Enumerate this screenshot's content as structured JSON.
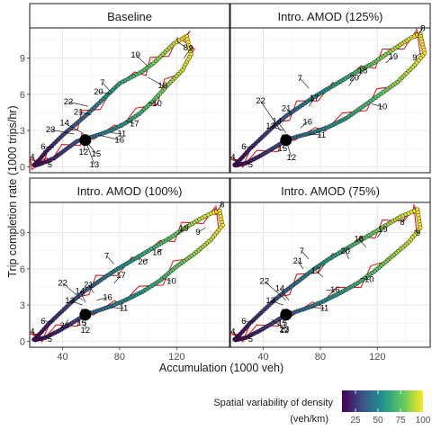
{
  "chart_data": {
    "type": "scatter",
    "layout": "faceted 2x2 small multiples with shared axes",
    "xlabel": "Accumulation (1000 veh)",
    "ylabel": "Trip completion rate (1000 trips/hr)",
    "xlim": [
      17,
      157
    ],
    "ylim": [
      -0.5,
      11.5
    ],
    "x_ticks": [
      40,
      80,
      120
    ],
    "y_ticks": [
      0,
      3,
      6,
      9
    ],
    "grid": true,
    "color_legend": {
      "title": "Spatial variability of density (veh/km)",
      "title_lines": [
        "Spatial variability of density",
        "(veh/km)"
      ],
      "placement": "bottom-right",
      "scale": "viridis",
      "range": [
        10,
        100
      ],
      "ticks": [
        25,
        50,
        75,
        100
      ],
      "colors": [
        "#440154",
        "#3b528b",
        "#21918c",
        "#5ec962",
        "#fde725"
      ]
    },
    "envelope_color": "#e41a1c",
    "panels": [
      {
        "title": "Baseline",
        "peak_hour": 8,
        "peak_point": [
          127,
          10.8
        ],
        "inner": [
          [
            20,
            0.15
          ],
          [
            24,
            0.6
          ],
          [
            28,
            1.2
          ],
          [
            34,
            1.9
          ],
          [
            40,
            2.6
          ],
          [
            48,
            3.4
          ],
          [
            56,
            4.2
          ],
          [
            64,
            5.1
          ],
          [
            72,
            6.0
          ],
          [
            80,
            6.9
          ],
          [
            88,
            7.4
          ],
          [
            96,
            7.9
          ],
          [
            104,
            8.6
          ],
          [
            112,
            9.5
          ],
          [
            118,
            10.2
          ],
          [
            124,
            10.6
          ],
          [
            127,
            10.8
          ]
        ],
        "outer": [
          [
            127,
            10.8
          ],
          [
            130,
            9.3
          ],
          [
            124,
            8.0
          ],
          [
            114,
            6.8
          ],
          [
            104,
            5.5
          ],
          [
            94,
            4.4
          ],
          [
            84,
            3.6
          ],
          [
            74,
            3.0
          ],
          [
            64,
            2.6
          ],
          [
            56,
            2.3
          ],
          [
            50,
            2.1
          ],
          [
            42,
            1.4
          ],
          [
            34,
            0.7
          ],
          [
            26,
            0.3
          ],
          [
            21,
            0.1
          ]
        ],
        "labels": [
          {
            "text": "4",
            "x": 22,
            "y": 0.3,
            "lx": -5,
            "ly": -4
          },
          {
            "text": "5",
            "x": 28,
            "y": 0.4,
            "lx": 5,
            "ly": 6
          },
          {
            "text": "6",
            "x": 34,
            "y": 1.6,
            "lx": -12,
            "ly": 2
          },
          {
            "text": "7",
            "x": 73,
            "y": 6.3,
            "lx": -8,
            "ly": -6
          },
          {
            "text": "8",
            "x": 120,
            "y": 10.4,
            "lx": 10,
            "ly": 10
          },
          {
            "text": "9",
            "x": 125,
            "y": 9.0,
            "lx": 8,
            "ly": -8
          },
          {
            "text": "10",
            "x": 100,
            "y": 5.3,
            "lx": 10,
            "ly": 4
          },
          {
            "text": "11",
            "x": 74,
            "y": 2.8,
            "lx": 12,
            "ly": 4
          },
          {
            "text": "12",
            "x": 56,
            "y": 2.2,
            "lx": -2,
            "ly": 16
          },
          {
            "text": "13",
            "x": 56,
            "y": 2.2,
            "lx": 10,
            "ly": 30
          },
          {
            "text": "14",
            "x": 54,
            "y": 2.8,
            "lx": -20,
            "ly": -8
          },
          {
            "text": "15",
            "x": 56,
            "y": 2.2,
            "lx": 12,
            "ly": 18
          },
          {
            "text": "16",
            "x": 66,
            "y": 2.6,
            "lx": 22,
            "ly": 8
          },
          {
            "text": "17",
            "x": 84,
            "y": 3.8,
            "lx": 10,
            "ly": 6
          },
          {
            "text": "18",
            "x": 100,
            "y": 7.4,
            "lx": 16,
            "ly": 12
          },
          {
            "text": "19",
            "x": 100,
            "y": 8.3,
            "lx": -14,
            "ly": -10
          },
          {
            "text": "20",
            "x": 74,
            "y": 6.0,
            "lx": -14,
            "ly": 0
          },
          {
            "text": "21",
            "x": 60,
            "y": 4.3,
            "lx": -14,
            "ly": 0
          },
          {
            "text": "22",
            "x": 58,
            "y": 5.0,
            "lx": -22,
            "ly": -2
          },
          {
            "text": "23",
            "x": 48,
            "y": 2.7,
            "lx": -26,
            "ly": -2
          }
        ]
      },
      {
        "title": "Intro. AMOD (125%)",
        "peak_hour": 8,
        "peak_point": [
          150,
          11.0
        ],
        "inner": [
          [
            20,
            0.15
          ],
          [
            24,
            0.6
          ],
          [
            30,
            1.4
          ],
          [
            38,
            2.3
          ],
          [
            46,
            3.2
          ],
          [
            56,
            4.2
          ],
          [
            66,
            5.0
          ],
          [
            76,
            5.8
          ],
          [
            86,
            6.5
          ],
          [
            96,
            7.2
          ],
          [
            106,
            7.9
          ],
          [
            116,
            8.5
          ],
          [
            126,
            9.3
          ],
          [
            136,
            10.1
          ],
          [
            144,
            10.7
          ],
          [
            150,
            11.0
          ]
        ],
        "outer": [
          [
            150,
            11.0
          ],
          [
            153,
            9.4
          ],
          [
            146,
            8.4
          ],
          [
            134,
            7.0
          ],
          [
            122,
            6.0
          ],
          [
            110,
            5.0
          ],
          [
            98,
            4.0
          ],
          [
            86,
            3.3
          ],
          [
            74,
            2.8
          ],
          [
            64,
            2.5
          ],
          [
            56,
            2.2
          ],
          [
            48,
            1.6
          ],
          [
            38,
            0.9
          ],
          [
            28,
            0.3
          ],
          [
            21,
            0.1
          ]
        ],
        "labels": [
          {
            "text": "4",
            "x": 22,
            "y": 0.3,
            "lx": -5,
            "ly": -4
          },
          {
            "text": "5",
            "x": 28,
            "y": 0.4,
            "lx": 5,
            "ly": 6
          },
          {
            "text": "6",
            "x": 34,
            "y": 1.6,
            "lx": -12,
            "ly": 2
          },
          {
            "text": "7",
            "x": 72,
            "y": 6.5,
            "lx": -10,
            "ly": -8
          },
          {
            "text": "8",
            "x": 148,
            "y": 10.8,
            "lx": 6,
            "ly": -6
          },
          {
            "text": "9",
            "x": 150,
            "y": 9.4,
            "lx": -6,
            "ly": 8
          },
          {
            "text": "10",
            "x": 116,
            "y": 5.2,
            "lx": 12,
            "ly": 6
          },
          {
            "text": "11",
            "x": 72,
            "y": 2.7,
            "lx": 14,
            "ly": 4
          },
          {
            "text": "12",
            "x": 56,
            "y": 2.2,
            "lx": 6,
            "ly": 22
          },
          {
            "text": "13",
            "x": 54,
            "y": 3.0,
            "lx": -14,
            "ly": -2
          },
          {
            "text": "14",
            "x": 56,
            "y": 2.8,
            "lx": -10,
            "ly": -10
          },
          {
            "text": "15",
            "x": 56,
            "y": 2.2,
            "lx": -4,
            "ly": 12
          },
          {
            "text": "16",
            "x": 66,
            "y": 3.2,
            "lx": 8,
            "ly": -4
          },
          {
            "text": "17",
            "x": 72,
            "y": 5.0,
            "lx": 6,
            "ly": -6
          },
          {
            "text": "18",
            "x": 106,
            "y": 7.3,
            "lx": 6,
            "ly": -6
          },
          {
            "text": "19",
            "x": 126,
            "y": 8.6,
            "lx": 8,
            "ly": -4
          },
          {
            "text": "20",
            "x": 100,
            "y": 6.7,
            "lx": 6,
            "ly": -6
          },
          {
            "text": "21",
            "x": 60,
            "y": 4.3,
            "lx": -6,
            "ly": -4
          },
          {
            "text": "22",
            "x": 52,
            "y": 3.0,
            "lx": -22,
            "ly": -30
          }
        ]
      },
      {
        "title": "Intro. AMOD (100%)",
        "peak_hour": 8,
        "peak_point": [
          150,
          10.8
        ],
        "inner": [
          [
            20,
            0.15
          ],
          [
            24,
            0.6
          ],
          [
            30,
            1.4
          ],
          [
            38,
            2.3
          ],
          [
            46,
            3.2
          ],
          [
            56,
            4.2
          ],
          [
            66,
            5.0
          ],
          [
            76,
            5.8
          ],
          [
            86,
            6.5
          ],
          [
            96,
            7.2
          ],
          [
            106,
            7.9
          ],
          [
            116,
            8.6
          ],
          [
            126,
            9.4
          ],
          [
            136,
            10.1
          ],
          [
            144,
            10.6
          ],
          [
            150,
            10.8
          ]
        ],
        "outer": [
          [
            150,
            10.8
          ],
          [
            152,
            9.6
          ],
          [
            144,
            8.4
          ],
          [
            132,
            7.2
          ],
          [
            120,
            6.2
          ],
          [
            108,
            5.0
          ],
          [
            96,
            4.1
          ],
          [
            84,
            3.4
          ],
          [
            74,
            2.9
          ],
          [
            64,
            2.5
          ],
          [
            56,
            2.2
          ],
          [
            48,
            1.6
          ],
          [
            38,
            0.9
          ],
          [
            28,
            0.3
          ],
          [
            21,
            0.1
          ]
        ],
        "labels": [
          {
            "text": "4",
            "x": 22,
            "y": 0.3,
            "lx": -5,
            "ly": -4
          },
          {
            "text": "5",
            "x": 28,
            "y": 0.4,
            "lx": 5,
            "ly": 6
          },
          {
            "text": "6",
            "x": 34,
            "y": 1.6,
            "lx": -12,
            "ly": 2
          },
          {
            "text": "7",
            "x": 76,
            "y": 6.4,
            "lx": -8,
            "ly": -6
          },
          {
            "text": "8",
            "x": 148,
            "y": 10.8,
            "lx": 6,
            "ly": -4
          },
          {
            "text": "9",
            "x": 140,
            "y": 9.4,
            "lx": -8,
            "ly": 8
          },
          {
            "text": "10",
            "x": 110,
            "y": 5.2,
            "lx": 10,
            "ly": 6
          },
          {
            "text": "11",
            "x": 74,
            "y": 2.8,
            "lx": 14,
            "ly": 4
          },
          {
            "text": "12",
            "x": 56,
            "y": 2.2,
            "lx": 0,
            "ly": 20
          },
          {
            "text": "13",
            "x": 54,
            "y": 3.0,
            "lx": -14,
            "ly": -2
          },
          {
            "text": "14",
            "x": 56,
            "y": 3.2,
            "lx": -6,
            "ly": -10
          },
          {
            "text": "15",
            "x": 56,
            "y": 2.2,
            "lx": -4,
            "ly": 12
          },
          {
            "text": "16",
            "x": 64,
            "y": 3.4,
            "lx": 12,
            "ly": 0
          },
          {
            "text": "17",
            "x": 76,
            "y": 4.8,
            "lx": 8,
            "ly": -6
          },
          {
            "text": "18",
            "x": 110,
            "y": 7.6,
            "lx": -6,
            "ly": 6
          },
          {
            "text": "19",
            "x": 120,
            "y": 8.8,
            "lx": 8,
            "ly": -4
          },
          {
            "text": "20",
            "x": 100,
            "y": 6.8,
            "lx": -6,
            "ly": 6
          },
          {
            "text": "21",
            "x": 62,
            "y": 4.0,
            "lx": -6,
            "ly": -6
          },
          {
            "text": "22",
            "x": 54,
            "y": 3.4,
            "lx": -22,
            "ly": -16
          },
          {
            "text": "23",
            "x": 44,
            "y": 1.8,
            "lx": -4,
            "ly": 10
          }
        ]
      },
      {
        "title": "Intro. AMOD (75%)",
        "peak_hour": 8,
        "peak_point": [
          148,
          10.9
        ],
        "inner": [
          [
            20,
            0.15
          ],
          [
            24,
            0.6
          ],
          [
            30,
            1.4
          ],
          [
            38,
            2.3
          ],
          [
            46,
            3.2
          ],
          [
            56,
            4.2
          ],
          [
            66,
            5.1
          ],
          [
            76,
            6.0
          ],
          [
            86,
            6.8
          ],
          [
            96,
            7.5
          ],
          [
            106,
            8.2
          ],
          [
            116,
            8.9
          ],
          [
            126,
            9.6
          ],
          [
            136,
            10.3
          ],
          [
            144,
            10.7
          ],
          [
            148,
            10.9
          ]
        ],
        "outer": [
          [
            148,
            10.9
          ],
          [
            150,
            9.4
          ],
          [
            142,
            8.2
          ],
          [
            130,
            7.0
          ],
          [
            118,
            5.8
          ],
          [
            106,
            4.8
          ],
          [
            94,
            4.0
          ],
          [
            82,
            3.3
          ],
          [
            72,
            2.8
          ],
          [
            62,
            2.4
          ],
          [
            56,
            2.2
          ],
          [
            48,
            1.6
          ],
          [
            38,
            0.9
          ],
          [
            28,
            0.3
          ],
          [
            21,
            0.1
          ]
        ],
        "labels": [
          {
            "text": "4",
            "x": 22,
            "y": 0.3,
            "lx": -5,
            "ly": -4
          },
          {
            "text": "5",
            "x": 28,
            "y": 0.4,
            "lx": 5,
            "ly": 6
          },
          {
            "text": "6",
            "x": 34,
            "y": 1.6,
            "lx": -12,
            "ly": 2
          },
          {
            "text": "7",
            "x": 72,
            "y": 6.8,
            "lx": -8,
            "ly": -6
          },
          {
            "text": "8",
            "x": 140,
            "y": 10.4,
            "lx": -4,
            "ly": 10
          },
          {
            "text": "9",
            "x": 146,
            "y": 9.2,
            "lx": 4,
            "ly": 6
          },
          {
            "text": "10",
            "x": 108,
            "y": 5.2,
            "lx": 10,
            "ly": 4
          },
          {
            "text": "11",
            "x": 74,
            "y": 2.8,
            "lx": 14,
            "ly": 4
          },
          {
            "text": "12",
            "x": 56,
            "y": 2.2,
            "lx": -2,
            "ly": 20
          },
          {
            "text": "13",
            "x": 54,
            "y": 3.0,
            "lx": -14,
            "ly": -2
          },
          {
            "text": "14",
            "x": 58,
            "y": 3.4,
            "lx": -10,
            "ly": -10
          },
          {
            "text": "15",
            "x": 56,
            "y": 2.2,
            "lx": -4,
            "ly": 12
          },
          {
            "text": "16",
            "x": 84,
            "y": 4.2,
            "lx": 10,
            "ly": 2
          },
          {
            "text": "17",
            "x": 82,
            "y": 5.3,
            "lx": -8,
            "ly": -4
          },
          {
            "text": "18",
            "x": 112,
            "y": 7.8,
            "lx": -8,
            "ly": -6
          },
          {
            "text": "19",
            "x": 120,
            "y": 8.6,
            "lx": 6,
            "ly": -6
          },
          {
            "text": "20",
            "x": 100,
            "y": 6.8,
            "lx": -4,
            "ly": -6
          },
          {
            "text": "21",
            "x": 68,
            "y": 6.0,
            "lx": -6,
            "ly": -6
          },
          {
            "text": "22",
            "x": 56,
            "y": 3.4,
            "lx": -24,
            "ly": -18
          },
          {
            "text": "23",
            "x": 46,
            "y": 1.8,
            "lx": 14,
            "ly": 14
          }
        ]
      }
    ]
  }
}
